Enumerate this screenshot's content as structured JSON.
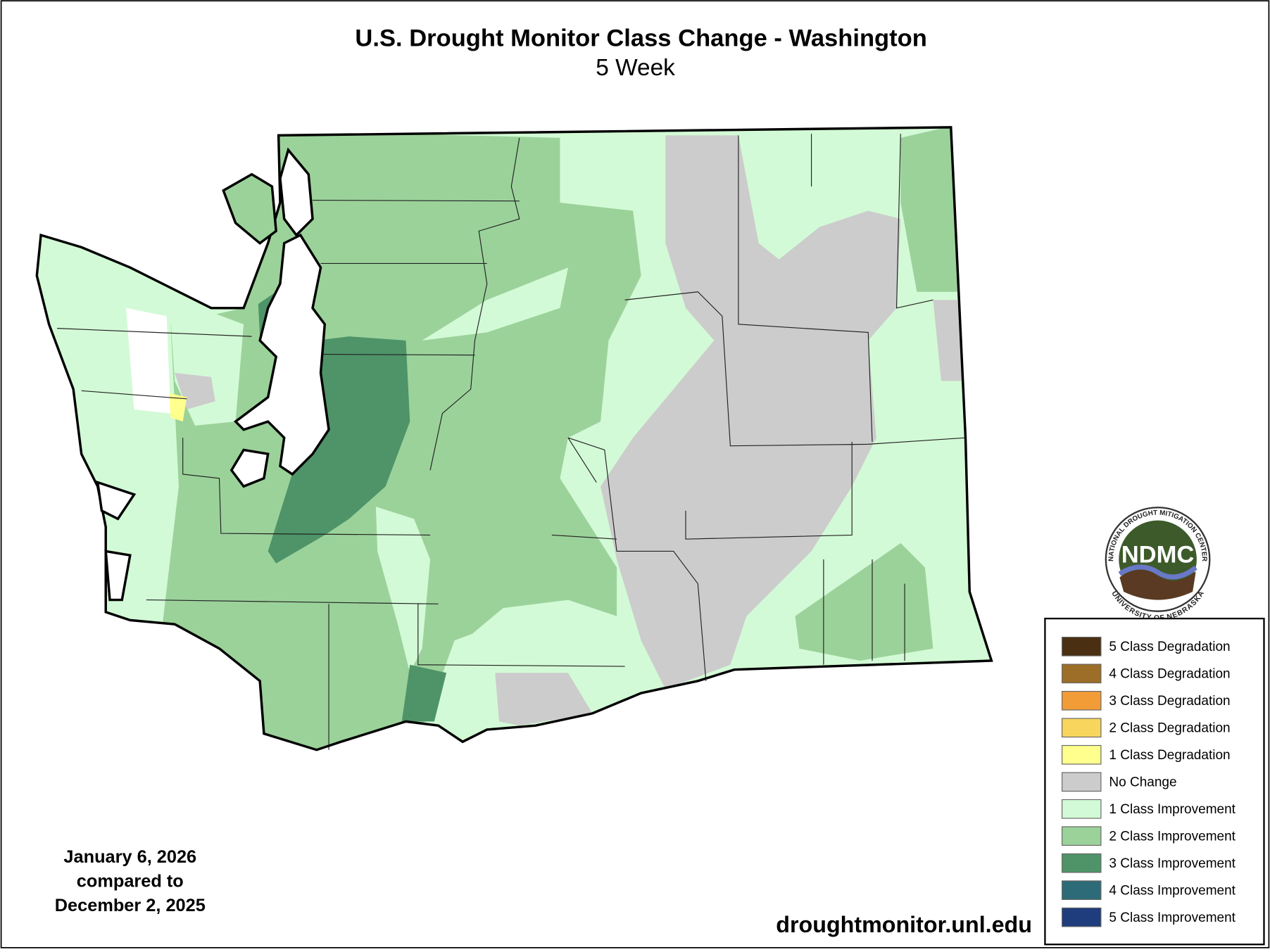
{
  "header": {
    "title": "U.S. Drought Monitor Class Change - Washington",
    "subtitle": "5 Week"
  },
  "dates": {
    "line1": "January 6, 2026",
    "line2": "compared to",
    "line3": "December 2, 2025"
  },
  "source": "droughtmonitor.unl.edu",
  "logo": {
    "abbr": "NDMC",
    "top_text": "NATIONAL DROUGHT MITIGATION CENTER",
    "bottom_text": "UNIVERSITY OF NEBRASKA"
  },
  "legend": {
    "items": [
      {
        "label": "5 Class Degradation",
        "color": "#4a2f12"
      },
      {
        "label": "4 Class Degradation",
        "color": "#9c6e28"
      },
      {
        "label": "3 Class Degradation",
        "color": "#f29c38"
      },
      {
        "label": "2 Class Degradation",
        "color": "#f8d55c"
      },
      {
        "label": "1 Class Degradation",
        "color": "#ffff8e"
      },
      {
        "label": "No Change",
        "color": "#cccccc"
      },
      {
        "label": "1 Class Improvement",
        "color": "#d3fad6"
      },
      {
        "label": "2 Class Improvement",
        "color": "#9bd29a"
      },
      {
        "label": "3 Class Improvement",
        "color": "#4e9468"
      },
      {
        "label": "4 Class Improvement",
        "color": "#2d6b78"
      },
      {
        "label": "5 Class Improvement",
        "color": "#1f3c7c"
      }
    ]
  }
}
